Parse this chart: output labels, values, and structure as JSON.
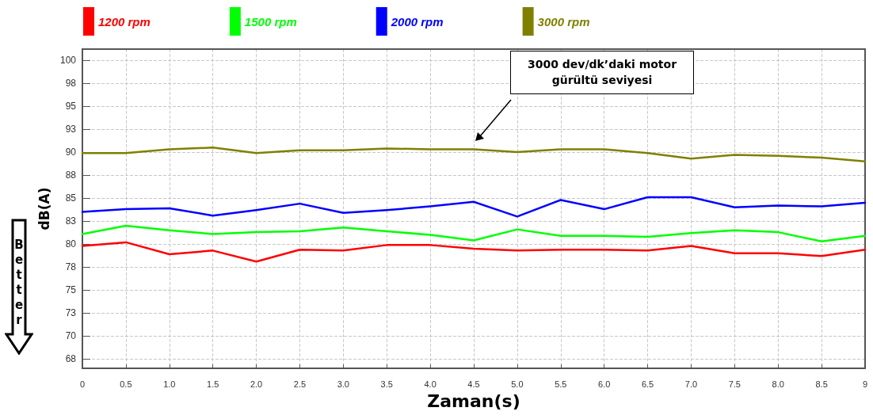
{
  "chart_data": {
    "type": "line",
    "xlabel": "Zaman(s)",
    "ylabel": "dB(A)",
    "x": [
      0,
      0.5,
      1,
      1.5,
      2,
      2.5,
      3,
      3.5,
      4,
      4.5,
      5,
      5.5,
      6,
      6.5,
      7,
      7.5,
      8,
      8.5,
      9
    ],
    "series": [
      {
        "name": "1200 rpm",
        "color": "#ff0000",
        "values": [
          79.8,
          80.2,
          78.9,
          79.3,
          78.1,
          79.4,
          79.3,
          79.9,
          79.9,
          79.5,
          79.3,
          79.4,
          79.4,
          79.3,
          79.8,
          79.0,
          79.0,
          78.7,
          79.4
        ]
      },
      {
        "name": "1500 rpm",
        "color": "#00ff00",
        "values": [
          81.1,
          82.0,
          81.5,
          81.1,
          81.3,
          81.4,
          81.8,
          81.4,
          81.0,
          80.4,
          81.6,
          80.9,
          80.9,
          80.8,
          81.2,
          81.5,
          81.3,
          80.3,
          80.9
        ]
      },
      {
        "name": "2000 rpm",
        "color": "#0000ff",
        "values": [
          83.5,
          83.8,
          83.9,
          83.1,
          83.7,
          84.4,
          83.4,
          83.7,
          84.1,
          84.6,
          83.0,
          84.8,
          83.8,
          85.1,
          85.1,
          84.0,
          84.2,
          84.1,
          84.5
        ]
      },
      {
        "name": "3000 rpm",
        "color": "#808000",
        "values": [
          89.9,
          89.9,
          90.3,
          90.5,
          89.9,
          90.2,
          90.2,
          90.4,
          90.3,
          90.3,
          90.0,
          90.3,
          90.3,
          89.9,
          89.3,
          89.7,
          89.6,
          89.4,
          89.0
        ]
      }
    ],
    "xlim": [
      0,
      9
    ],
    "xticks": [
      0,
      0.5,
      {
        "value": 1,
        "label": "1.0"
      },
      1.5,
      {
        "value": 2,
        "label": "2.0"
      },
      2.5,
      {
        "value": 3,
        "label": "3.0"
      },
      3.5,
      {
        "value": 4,
        "label": "4.0"
      },
      4.5,
      {
        "value": 5,
        "label": "5.0"
      },
      5.5,
      {
        "value": 6,
        "label": "6.0"
      },
      6.5,
      {
        "value": 7,
        "label": "7.0"
      },
      7.5,
      {
        "value": 8,
        "label": "8.0"
      },
      8.5,
      9
    ],
    "ylim": [
      66.5,
      101.2
    ],
    "yticks": [
      {
        "value": 67.5,
        "label": "68"
      },
      70,
      {
        "value": 72.5,
        "label": "73"
      },
      75,
      {
        "value": 77.5,
        "label": "78"
      },
      80,
      {
        "value": 82.5,
        "label": "83"
      },
      85,
      {
        "value": 87.5,
        "label": "88"
      },
      90,
      {
        "value": 92.5,
        "label": "93"
      },
      95,
      {
        "value": 97.5,
        "label": "98"
      },
      100
    ],
    "grid": true,
    "legend": "top",
    "marker": "none",
    "line_style": "solid",
    "annotations": [
      "Better",
      "3000 dev/dk’daki motor\ngürültü seviyesi"
    ]
  }
}
